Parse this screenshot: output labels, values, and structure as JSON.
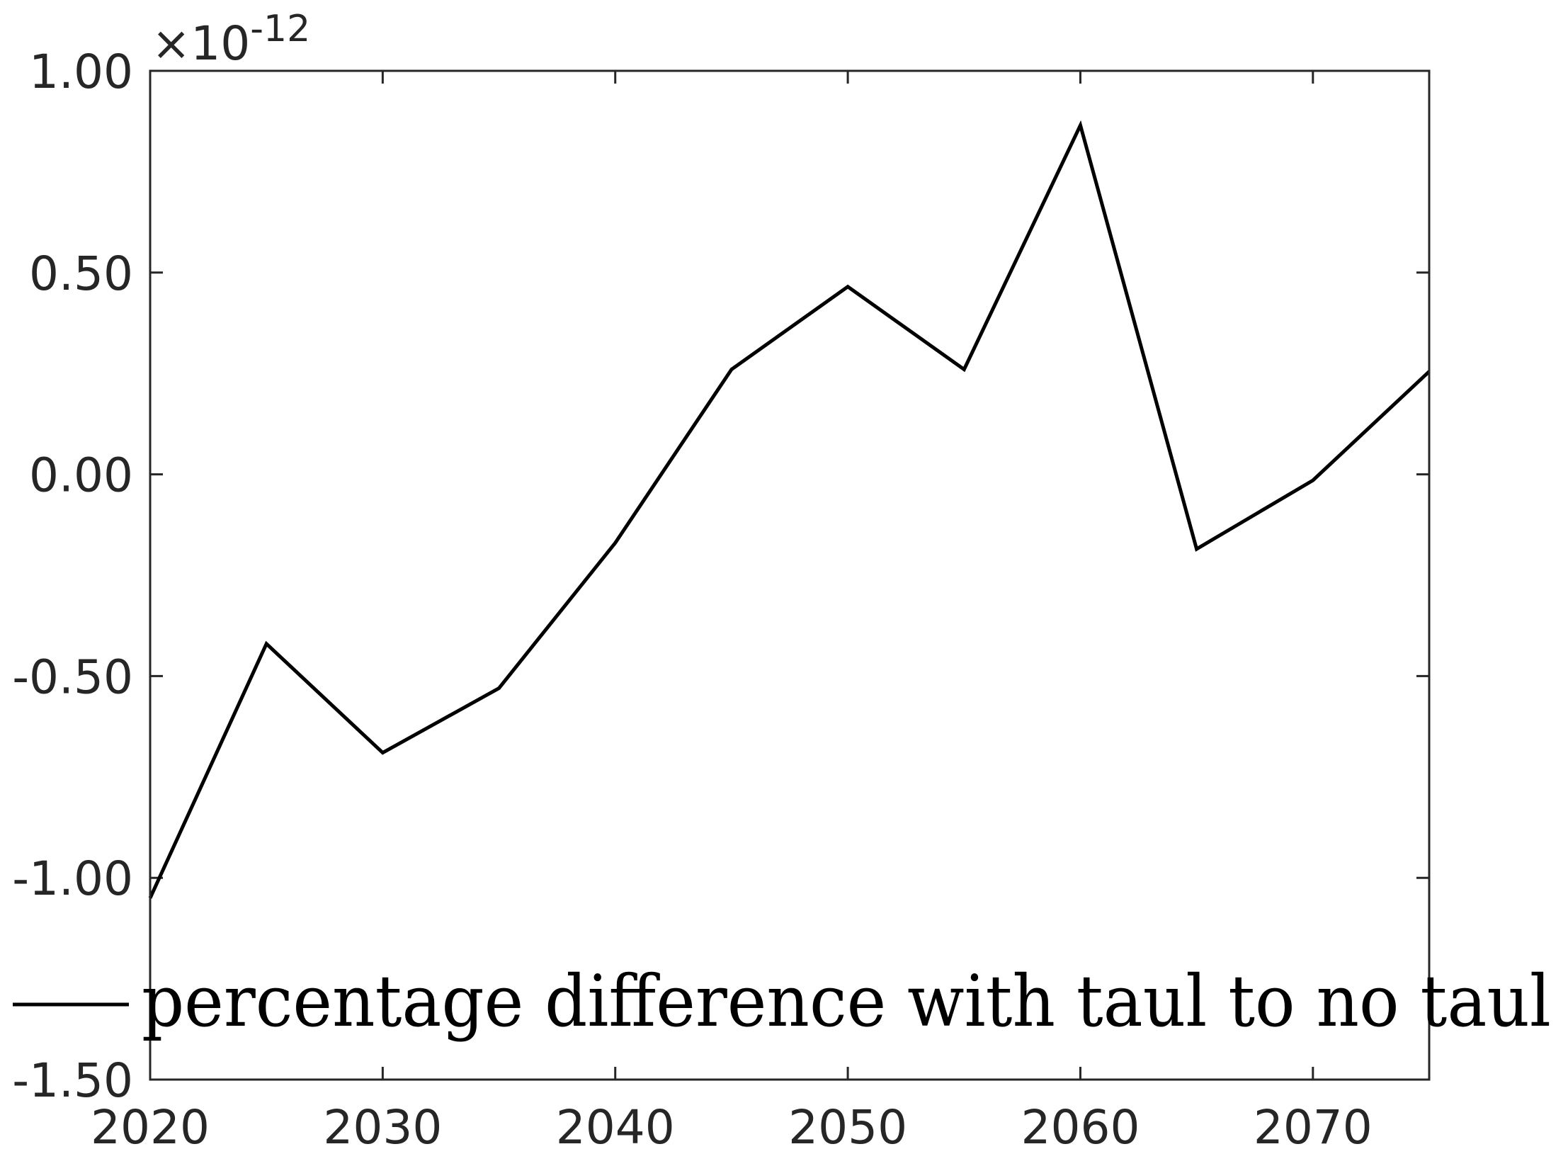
{
  "chart_data": {
    "type": "line",
    "title": "",
    "xlabel": "",
    "ylabel": "",
    "xlim": [
      2020,
      2075
    ],
    "ylim": [
      -1.5,
      1.0
    ],
    "x_ticks": [
      2020,
      2030,
      2040,
      2050,
      2060,
      2070
    ],
    "x_tick_labels": [
      "2020",
      "2030",
      "2040",
      "2050",
      "2060",
      "2070"
    ],
    "y_ticks": [
      1.0,
      0.5,
      0.0,
      -0.5,
      -1.0,
      -1.5
    ],
    "y_tick_labels": [
      "1.00",
      "0.50",
      "0.00",
      "-0.50",
      "-1.00",
      "-1.50"
    ],
    "y_exponent": {
      "base": "×10",
      "power": "-12"
    },
    "grid": false,
    "legend": {
      "placement": "bottom-left",
      "entries": [
        "percentage difference with taul to no taul"
      ]
    },
    "series": [
      {
        "name": "percentage difference with taul to no taul",
        "color": "#000000",
        "x": [
          2020,
          2025,
          2030,
          2035,
          2040,
          2045,
          2050,
          2055,
          2060,
          2065,
          2070,
          2075
        ],
        "values": [
          -1.05,
          -0.42,
          -0.69,
          -0.53,
          -0.17,
          0.26,
          0.465,
          0.26,
          0.865,
          -0.185,
          -0.015,
          0.255
        ]
      }
    ]
  }
}
